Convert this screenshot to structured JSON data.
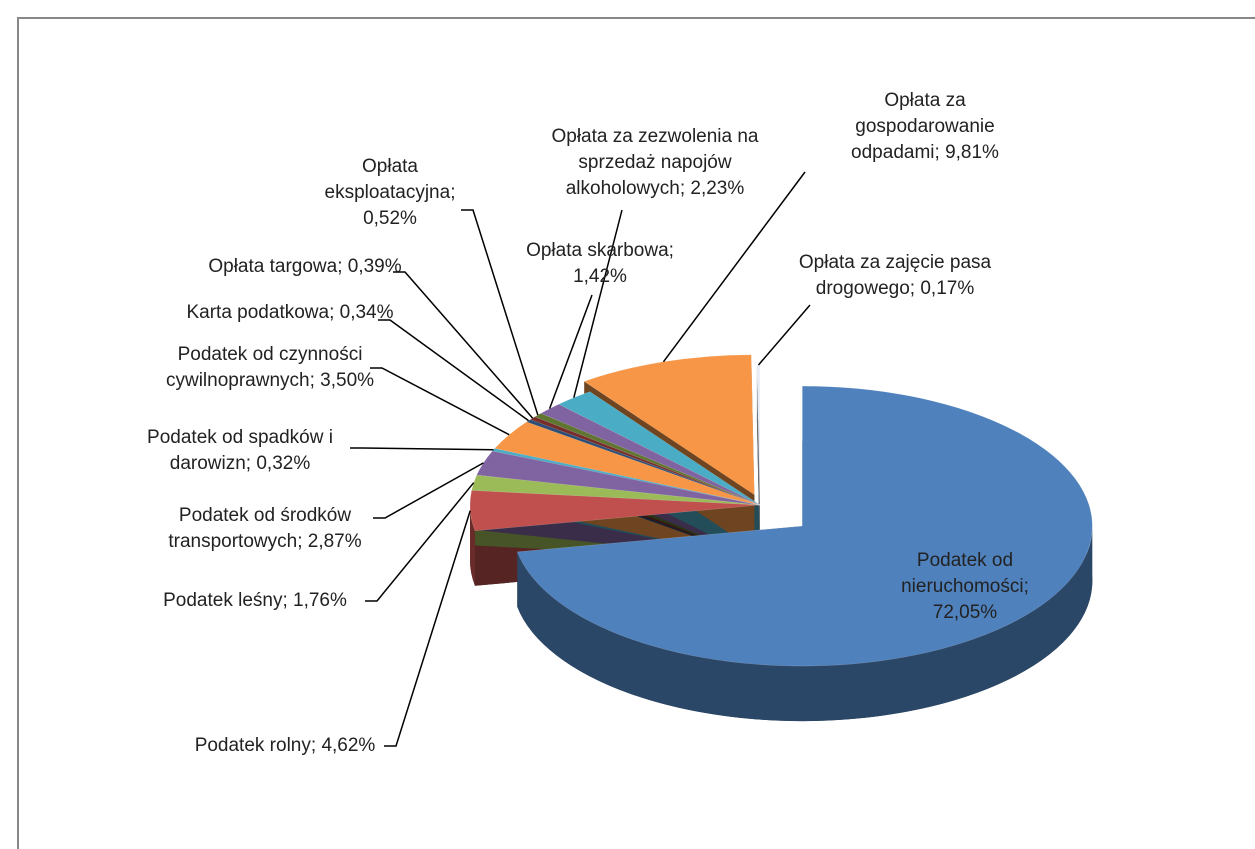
{
  "chart_data": {
    "type": "pie",
    "three_d": true,
    "separator": "; ",
    "categories": [
      "Podatek od nieruchomości",
      "Podatek rolny",
      "Podatek leśny",
      "Podatek od środków transportowych",
      "Podatek od spadków i darowizn",
      "Podatek od czynności cywilnoprawnych",
      "Karta podatkowa",
      "Opłata targowa",
      "Opłata eksploatacyjna",
      "Opłata skarbowa",
      "Opłata za zezwolenia na sprzedaż napojów alkoholowych",
      "Opłata za gospodarowanie odpadami",
      "Opłata za zajęcie pasa drogowego"
    ],
    "values": [
      72.05,
      4.62,
      1.76,
      2.87,
      0.32,
      3.5,
      0.34,
      0.39,
      0.52,
      1.42,
      2.23,
      9.81,
      0.17
    ],
    "value_labels": [
      "72,05%",
      "4,62%",
      "1,76%",
      "2,87%",
      "0,32%",
      "3,50%",
      "0,34%",
      "0,39%",
      "0,52%",
      "1,42%",
      "2,23%",
      "9,81%",
      "0,17%"
    ],
    "colors": [
      "#4f81bd",
      "#c0504d",
      "#9bbb59",
      "#8064a2",
      "#4bacc6",
      "#f79646",
      "#2c4d75",
      "#772c2a",
      "#5f7530",
      "#8064a2",
      "#4bacc6",
      "#f79646",
      "#e8eef7"
    ],
    "exploded": [
      0,
      11
    ]
  }
}
